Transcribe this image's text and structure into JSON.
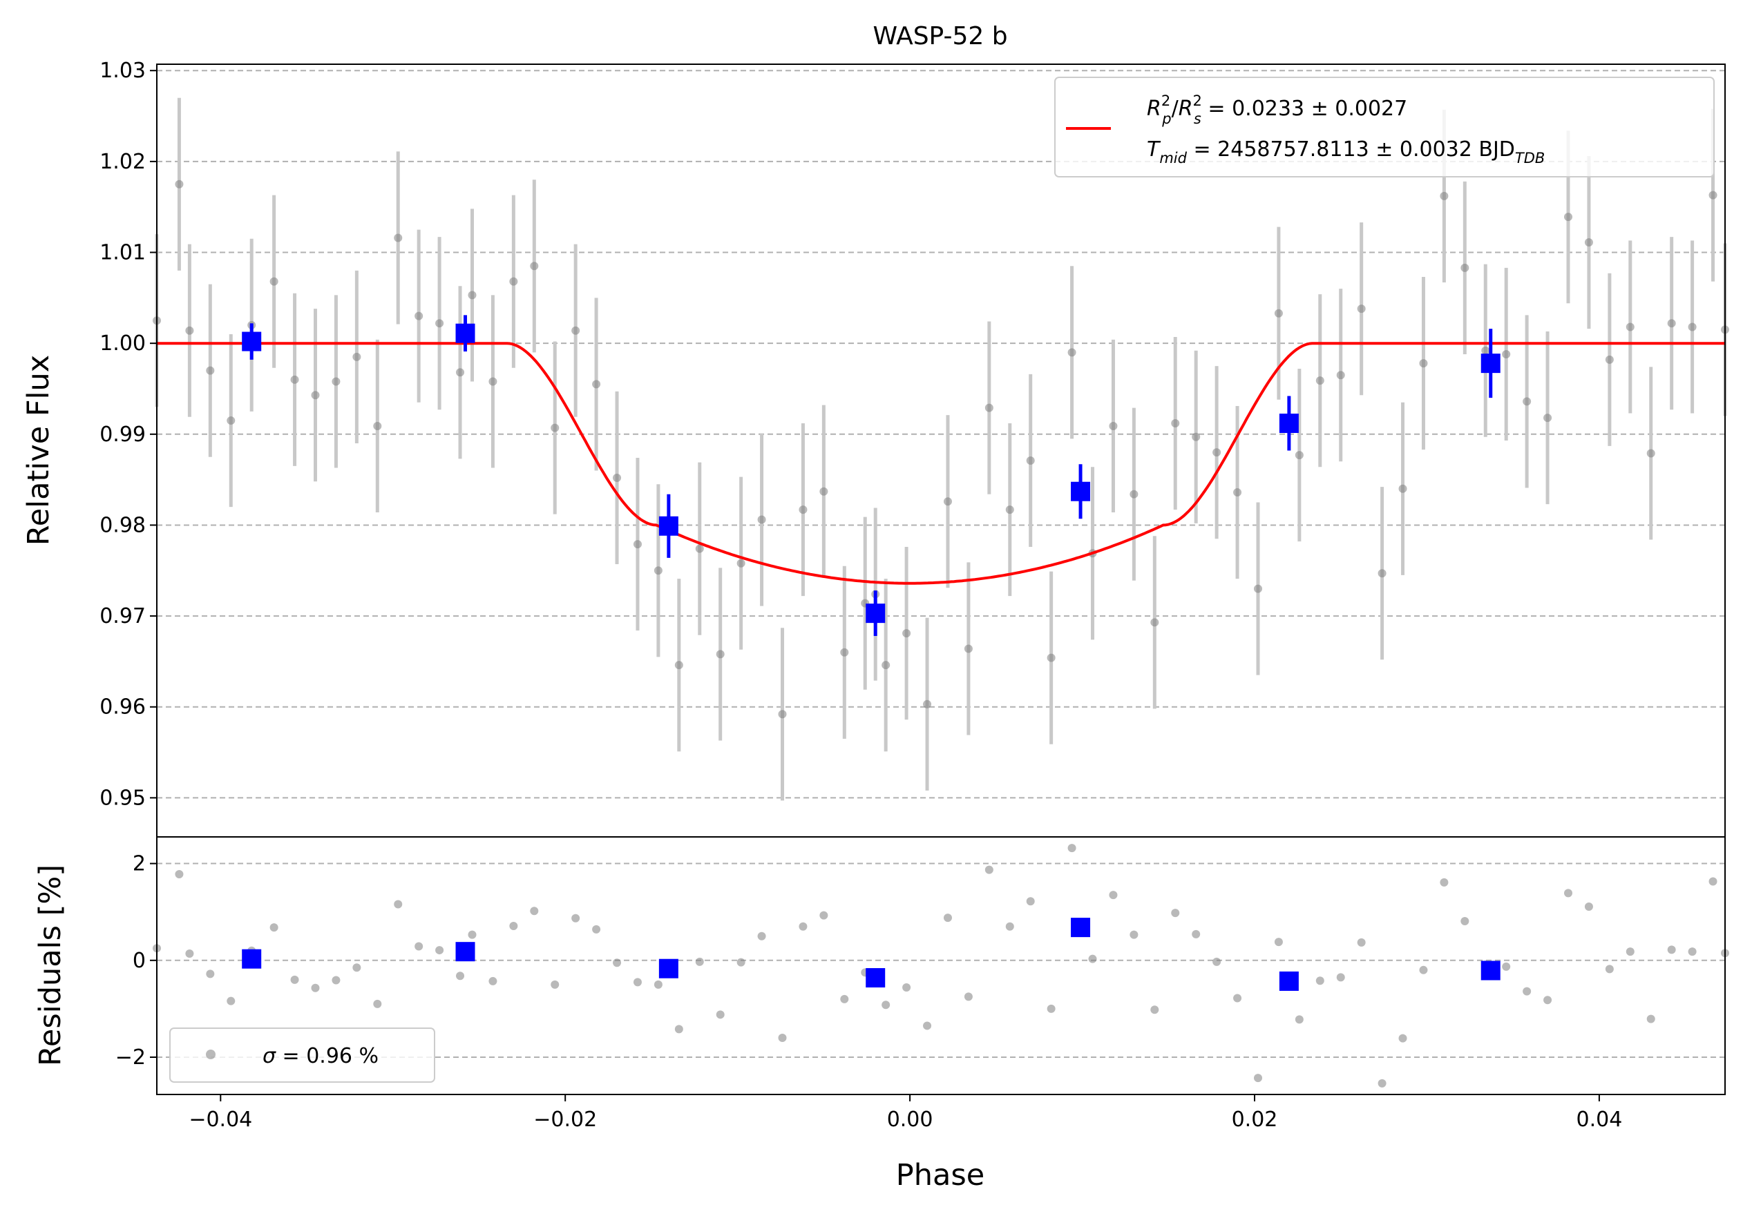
{
  "chart_data": [
    {
      "type": "scatter",
      "title": "WASP-52 b",
      "xlabel": "",
      "ylabel": "Relative Flux",
      "xlim": [
        -0.0437,
        0.0473
      ],
      "ylim": [
        0.9457,
        1.0307
      ],
      "yticks": [
        0.95,
        0.96,
        0.97,
        0.98,
        0.99,
        1.0,
        1.01,
        1.02,
        1.03
      ],
      "ytick_labels": [
        "0.95",
        "0.96",
        "0.97",
        "0.98",
        "0.99",
        "1.00",
        "1.01",
        "1.02",
        "1.03"
      ],
      "grid": "horizontal dashed",
      "legend": {
        "placement": "top-right",
        "entry_parts": {
          "rp": "R",
          "rp_sup": "2",
          "rp_sub": "p",
          "slash": "/",
          "rs": "R",
          "rs_sup": "2",
          "rs_sub": "s",
          "value": " = 0.0233 ± 0.0027",
          "t": "T",
          "t_sub": "mid",
          "t_value": " = 2458757.8113 ± 0.0032 BJD",
          "t_unit_sub": "TDB"
        }
      },
      "colors": {
        "raw": "#808080",
        "raw_err": "#c8c8c8",
        "binned": "#0000ff",
        "model": "#ff0000"
      },
      "series": [
        {
          "kind": "raw",
          "x": [
            -0.0437,
            -0.0424,
            -0.0418,
            -0.0406,
            -0.0394,
            -0.0382,
            -0.0369,
            -0.0357,
            -0.0345,
            -0.0333,
            -0.0321,
            -0.0309,
            -0.0297,
            -0.0285,
            -0.0273,
            -0.0261,
            -0.0254,
            -0.0242,
            -0.023,
            -0.0218,
            -0.0206,
            -0.0194,
            -0.0182,
            -0.017,
            -0.0158,
            -0.0146,
            -0.0134,
            -0.0122,
            -0.011,
            -0.0098,
            -0.0086,
            -0.0074,
            -0.0062,
            -0.005,
            -0.0038,
            -0.0026,
            -0.002,
            -0.0014,
            -0.0002,
            0.001,
            0.0022,
            0.0034,
            0.0046,
            0.0058,
            0.007,
            0.0082,
            0.0094,
            0.0106,
            0.0118,
            0.013,
            0.0142,
            0.0154,
            0.0166,
            0.0178,
            0.019,
            0.0202,
            0.0214,
            0.0226,
            0.0238,
            0.025,
            0.0262,
            0.0274,
            0.0286,
            0.0298,
            0.031,
            0.0322,
            0.0334,
            0.0346,
            0.0358,
            0.037,
            0.0382,
            0.0394,
            0.0406,
            0.0418,
            0.043,
            0.0442,
            0.0454,
            0.0466,
            0.0473
          ],
          "y": [
            1.0025,
            1.0175,
            1.0014,
            0.997,
            0.9915,
            1.002,
            1.0068,
            0.996,
            0.9943,
            0.9958,
            0.9985,
            0.9909,
            1.0116,
            1.003,
            1.0022,
            0.9968,
            1.0053,
            0.9958,
            1.0068,
            1.0085,
            0.9907,
            1.0014,
            0.9955,
            0.9852,
            0.9779,
            0.975,
            0.9646,
            0.9774,
            0.9658,
            0.9758,
            0.9806,
            0.9592,
            0.9817,
            0.9837,
            0.966,
            0.9714,
            0.9724,
            0.9646,
            0.9681,
            0.9603,
            0.9826,
            0.9664,
            0.9929,
            0.9817,
            0.9871,
            0.9654,
            0.999,
            0.9769,
            0.9909,
            0.9834,
            0.9693,
            0.9912,
            0.9897,
            0.988,
            0.9836,
            0.973,
            1.0033,
            0.9877,
            0.9959,
            0.9965,
            1.0038,
            0.9747,
            0.984,
            0.9978,
            1.0162,
            1.0083,
            0.9992,
            0.9988,
            0.9936,
            0.9918,
            1.0139,
            1.0111,
            0.9982,
            1.0018,
            0.9879,
            1.0022,
            1.0018,
            1.0163,
            1.0015
          ],
          "err": 0.0095
        },
        {
          "kind": "binned",
          "x": [
            -0.0382,
            -0.0258,
            -0.014,
            -0.002,
            0.0099,
            0.022,
            0.0337
          ],
          "y": [
            1.0002,
            1.0011,
            0.9799,
            0.9703,
            0.9837,
            0.9912,
            0.9978
          ],
          "err": [
            0.002,
            0.002,
            0.0035,
            0.0025,
            0.003,
            0.003,
            0.0038
          ]
        },
        {
          "kind": "model",
          "depth": 0.0264,
          "t1": -0.0234,
          "t2": -0.0147,
          "t3": 0.0147,
          "t4": 0.0234
        }
      ]
    },
    {
      "type": "scatter",
      "xlabel": "Phase",
      "ylabel": "Residuals [%]",
      "xlim": [
        -0.0437,
        0.0473
      ],
      "ylim": [
        -2.77,
        2.55
      ],
      "yticks": [
        -2,
        0,
        2
      ],
      "ytick_labels": [
        "−2",
        "0",
        "2"
      ],
      "xticks": [
        -0.04,
        -0.02,
        0.0,
        0.02,
        0.04
      ],
      "xtick_labels": [
        "−0.04",
        "−0.02",
        "0.00",
        "0.02",
        "0.04"
      ],
      "grid": "horizontal dashed",
      "legend": {
        "placement": "bottom-left",
        "sigma": "σ",
        "label": " = 0.96 %"
      },
      "series": [
        {
          "kind": "raw",
          "x": [
            -0.0437,
            -0.0424,
            -0.0418,
            -0.0406,
            -0.0394,
            -0.0382,
            -0.0369,
            -0.0357,
            -0.0345,
            -0.0333,
            -0.0321,
            -0.0309,
            -0.0297,
            -0.0285,
            -0.0273,
            -0.0261,
            -0.0254,
            -0.0242,
            -0.023,
            -0.0218,
            -0.0206,
            -0.0194,
            -0.0182,
            -0.017,
            -0.0158,
            -0.0146,
            -0.0134,
            -0.0122,
            -0.011,
            -0.0098,
            -0.0086,
            -0.0074,
            -0.0062,
            -0.005,
            -0.0038,
            -0.0026,
            -0.002,
            -0.0014,
            -0.0002,
            0.001,
            0.0022,
            0.0034,
            0.0046,
            0.0058,
            0.007,
            0.0082,
            0.0094,
            0.0106,
            0.0118,
            0.013,
            0.0142,
            0.0154,
            0.0166,
            0.0178,
            0.019,
            0.0202,
            0.0214,
            0.0226,
            0.0238,
            0.025,
            0.0262,
            0.0274,
            0.0286,
            0.0298,
            0.031,
            0.0322,
            0.0334,
            0.0346,
            0.0358,
            0.037,
            0.0382,
            0.0394,
            0.0406,
            0.0418,
            0.043,
            0.0442,
            0.0454,
            0.0466,
            0.0473
          ],
          "y": [
            0.25,
            1.78,
            0.14,
            -0.28,
            -0.84,
            0.2,
            0.68,
            -0.4,
            -0.57,
            -0.41,
            -0.15,
            -0.9,
            1.16,
            0.29,
            0.21,
            -0.32,
            0.53,
            -0.43,
            0.71,
            1.02,
            -0.5,
            0.87,
            0.64,
            -0.05,
            -0.45,
            -0.5,
            -1.42,
            -0.03,
            -1.12,
            -0.04,
            0.5,
            -1.6,
            0.7,
            0.93,
            -0.8,
            -0.25,
            -0.3,
            -0.92,
            -0.56,
            -1.35,
            0.88,
            -0.75,
            1.87,
            0.7,
            1.22,
            -1.0,
            2.32,
            0.03,
            1.35,
            0.53,
            -1.02,
            0.98,
            0.54,
            -0.03,
            -0.78,
            -2.43,
            0.38,
            -1.22,
            -0.42,
            -0.35,
            0.37,
            -2.54,
            -1.61,
            -0.2,
            1.61,
            0.81,
            -0.09,
            -0.13,
            -0.64,
            -0.82,
            1.39,
            1.11,
            -0.18,
            0.18,
            -1.21,
            0.22,
            0.18,
            1.63,
            0.15
          ]
        },
        {
          "kind": "binned",
          "x": [
            -0.0382,
            -0.0258,
            -0.014,
            -0.002,
            0.0099,
            0.022,
            0.0337
          ],
          "y": [
            0.03,
            0.18,
            -0.17,
            -0.36,
            0.68,
            -0.43,
            -0.21
          ]
        }
      ]
    }
  ]
}
